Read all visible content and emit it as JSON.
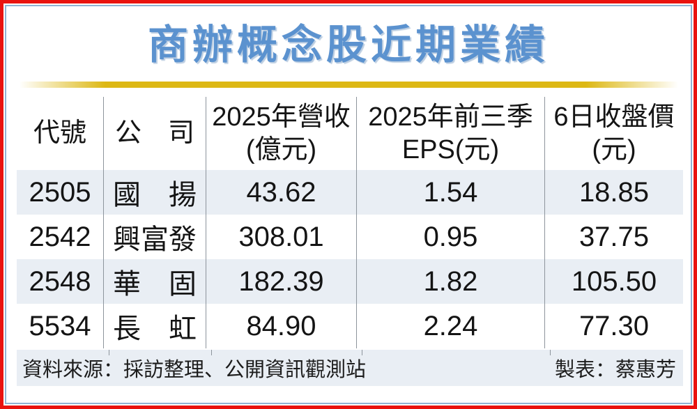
{
  "title": "商辦概念股近期業績",
  "table": {
    "columns": [
      {
        "label": "代號",
        "sub": ""
      },
      {
        "label": "公　司",
        "sub": ""
      },
      {
        "label": "2025年營收",
        "sub": "(億元)"
      },
      {
        "label": "2025年前三季",
        "sub": "EPS(元)"
      },
      {
        "label": "6日收盤價",
        "sub": "(元)"
      }
    ],
    "rows": [
      {
        "code": "2505",
        "company": "國　揚",
        "revenue": "43.62",
        "eps": "1.54",
        "close": "18.85"
      },
      {
        "code": "2542",
        "company": "興富發",
        "revenue": "308.01",
        "eps": "0.95",
        "close": "37.75"
      },
      {
        "code": "2548",
        "company": "華　固",
        "revenue": "182.39",
        "eps": "1.82",
        "close": "105.50"
      },
      {
        "code": "5534",
        "company": "長　虹",
        "revenue": "84.90",
        "eps": "2.24",
        "close": "77.30"
      }
    ]
  },
  "footer": {
    "source": "資料來源：採訪整理、公開資訊觀測站",
    "credit": "製表：蔡惠芳"
  },
  "colors": {
    "outer_border_red": "#e9130f",
    "inner_border_blue": "#8fb2d4",
    "title_blue": "#5b92cf",
    "gold_rule": "#ddb814",
    "row_alt_background": "#e9eef4",
    "divider_gray": "#8d949c",
    "text_black": "#141414"
  },
  "chart_data": {
    "type": "table",
    "title": "商辦概念股近期業績",
    "columns": [
      "代號",
      "公司",
      "2025年營收(億元)",
      "2025年前三季EPS(元)",
      "6日收盤價(元)"
    ],
    "rows": [
      [
        "2505",
        "國揚",
        43.62,
        1.54,
        18.85
      ],
      [
        "2542",
        "興富發",
        308.01,
        0.95,
        37.75
      ],
      [
        "2548",
        "華固",
        182.39,
        1.82,
        105.5
      ],
      [
        "5534",
        "長虹",
        84.9,
        2.24,
        77.3
      ]
    ],
    "source_note": "資料來源：採訪整理、公開資訊觀測站",
    "credit_note": "製表：蔡惠芳"
  }
}
